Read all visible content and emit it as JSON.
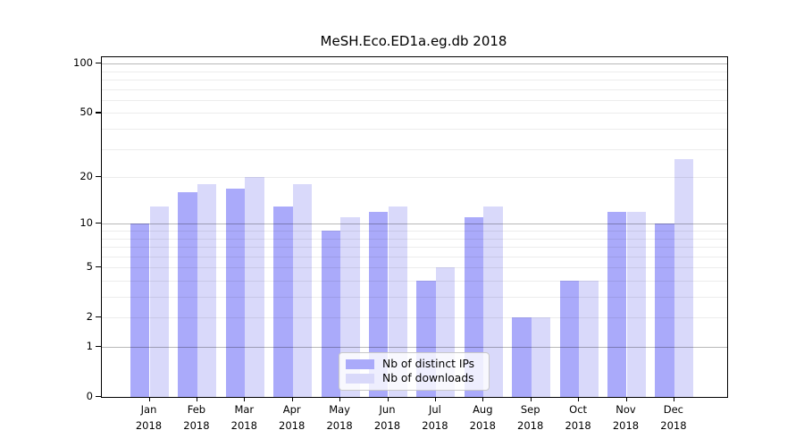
{
  "title": "MeSH.Eco.ED1a.eg.db 2018",
  "chart_data": {
    "type": "bar",
    "title": "MeSH.Eco.ED1a.eg.db 2018",
    "xlabel": "",
    "ylabel": "",
    "y_scale": "log10(1+x)",
    "ylim": [
      0,
      111
    ],
    "grid": "on",
    "legend_position": "lower center inside plot",
    "categories": [
      "Jan 2018",
      "Feb 2018",
      "Mar 2018",
      "Apr 2018",
      "May 2018",
      "Jun 2018",
      "Jul 2018",
      "Aug 2018",
      "Sep 2018",
      "Oct 2018",
      "Nov 2018",
      "Dec 2018"
    ],
    "series": [
      {
        "name": "Nb of distinct IPs",
        "color": "#aaaafa",
        "values": [
          10,
          16,
          17,
          13,
          9,
          12,
          4,
          11,
          2,
          4,
          12,
          10
        ]
      },
      {
        "name": "Nb of downloads",
        "color": "#d9d9fa",
        "values": [
          13,
          18,
          20,
          18,
          11,
          13,
          5,
          13,
          2,
          4,
          12,
          26
        ]
      }
    ],
    "ytick_values": [
      100,
      50,
      20,
      10,
      5,
      2,
      1,
      0
    ],
    "ytick_labels": [
      "100",
      "50",
      "20",
      "10",
      "5",
      "2",
      "1",
      "0"
    ],
    "major_gridline_values": [
      1,
      10,
      100
    ],
    "minor_gridline_values": [
      2,
      3,
      4,
      5,
      6,
      7,
      8,
      9,
      20,
      30,
      40,
      50,
      60,
      70,
      80,
      90
    ]
  }
}
